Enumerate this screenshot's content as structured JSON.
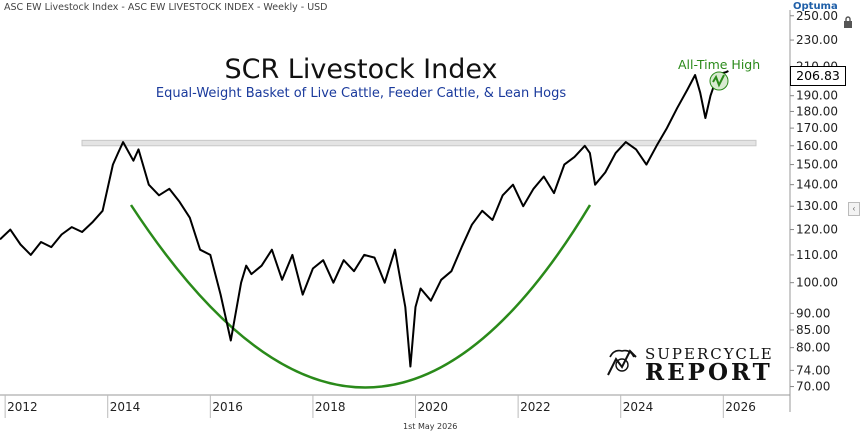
{
  "header": "ASC EW Livestock Index - ASC EW LIVESTOCK INDEX - Weekly - USD",
  "logo_text": "Optuma",
  "footer_date": "1st May 2026",
  "brand": {
    "line1": "SUPERCYCLE",
    "line2": "REPORT"
  },
  "annotation": "All-Time High",
  "last_value": "206.83",
  "chart_data": {
    "type": "line",
    "title": "SCR Livestock Index",
    "subtitle": "Equal-Weight Basket of Live Cattle, Feeder Cattle, & Lean Hogs",
    "xlabel": "",
    "ylabel": "",
    "y_scale": "log",
    "ylim": [
      68,
      255
    ],
    "xlim": [
      2011.9,
      2027.3
    ],
    "x_ticks": [
      "2012",
      "2014",
      "2016",
      "2018",
      "2020",
      "2022",
      "2024",
      "2026"
    ],
    "y_ticks": [
      "250.00",
      "230.00",
      "210.00",
      "190.00",
      "180.00",
      "170.00",
      "160.00",
      "150.00",
      "140.00",
      "130.00",
      "120.00",
      "110.00",
      "100.00",
      "90.00",
      "85.00",
      "80.00",
      "74.00",
      "70.00"
    ],
    "series": [
      {
        "x": [
          2011.9,
          2012.1,
          2012.3,
          2012.5,
          2012.7,
          2012.9,
          2013.1,
          2013.3,
          2013.5,
          2013.7,
          2013.9,
          2014.1,
          2014.2,
          2014.3,
          2014.5,
          2014.6,
          2014.8,
          2015.0,
          2015.2,
          2015.4,
          2015.6,
          2015.8,
          2016.0,
          2016.2,
          2016.4,
          2016.6,
          2016.7,
          2016.8,
          2017.0,
          2017.2,
          2017.4,
          2017.6,
          2017.8,
          2018.0,
          2018.2,
          2018.4,
          2018.6,
          2018.8,
          2019.0,
          2019.2,
          2019.4,
          2019.6,
          2019.8,
          2019.9,
          2020.0,
          2020.1,
          2020.3,
          2020.5,
          2020.7,
          2020.9,
          2021.1,
          2021.3,
          2021.5,
          2021.7,
          2021.9,
          2022.1,
          2022.3,
          2022.5,
          2022.7,
          2022.9,
          2023.1,
          2023.3,
          2023.4,
          2023.5,
          2023.7,
          2023.9,
          2024.1,
          2024.3,
          2024.5,
          2024.7,
          2024.9,
          2025.1,
          2025.3,
          2025.45,
          2025.55,
          2025.65,
          2025.75,
          2025.85,
          2025.95,
          2026.05,
          2026.1
        ],
        "values": [
          116,
          120,
          114,
          110,
          115,
          113,
          118,
          121,
          119,
          123,
          128,
          150,
          156,
          162,
          152,
          158,
          140,
          135,
          138,
          132,
          125,
          112,
          110,
          96,
          82,
          100,
          106,
          103,
          106,
          112,
          101,
          110,
          96,
          105,
          108,
          100,
          108,
          104,
          110,
          109,
          100,
          112,
          92,
          75,
          92,
          98,
          94,
          101,
          104,
          113,
          122,
          128,
          124,
          135,
          140,
          130,
          138,
          144,
          136,
          150,
          154,
          160,
          156,
          140,
          146,
          156,
          162,
          158,
          150,
          160,
          170,
          182,
          194,
          204,
          192,
          176,
          190,
          200,
          205,
          206,
          206.83
        ]
      }
    ],
    "resistance_band": [
      160,
      163
    ]
  }
}
